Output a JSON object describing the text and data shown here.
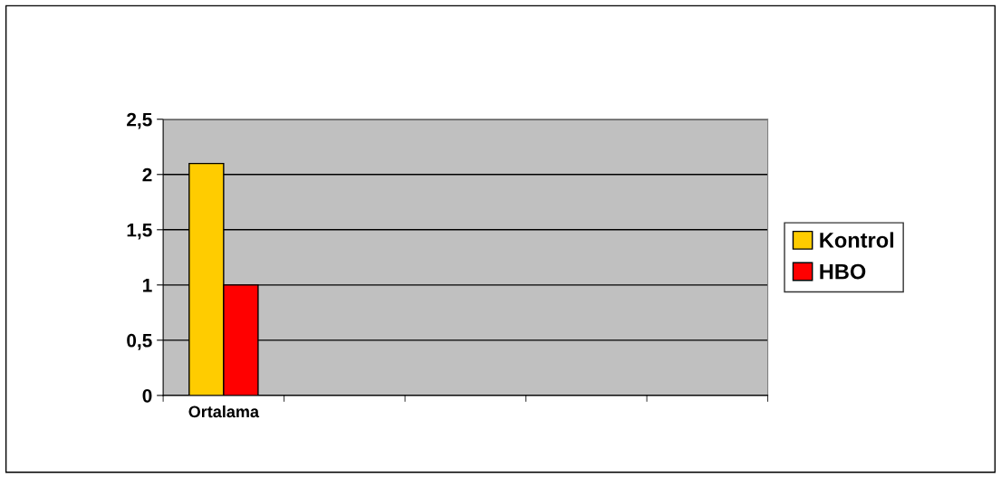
{
  "chart_data": {
    "type": "bar",
    "categories": [
      "Ortalama",
      null,
      null,
      null,
      null
    ],
    "series": [
      {
        "name": "Kontrol",
        "color": "#ffcc00",
        "values": [
          2.1,
          null,
          null,
          null,
          null
        ]
      },
      {
        "name": "HBO",
        "color": "#ff0000",
        "values": [
          1.0,
          null,
          null,
          null,
          null
        ]
      }
    ],
    "ylim": [
      0,
      2.5
    ],
    "yticks": [
      0,
      {
        "value": 0.5,
        "label": "0,5"
      },
      1,
      {
        "value": 1.5,
        "label": "1,5"
      },
      2,
      {
        "value": 2.5,
        "label": "2,5"
      }
    ],
    "grid": "y",
    "legend": "right"
  }
}
